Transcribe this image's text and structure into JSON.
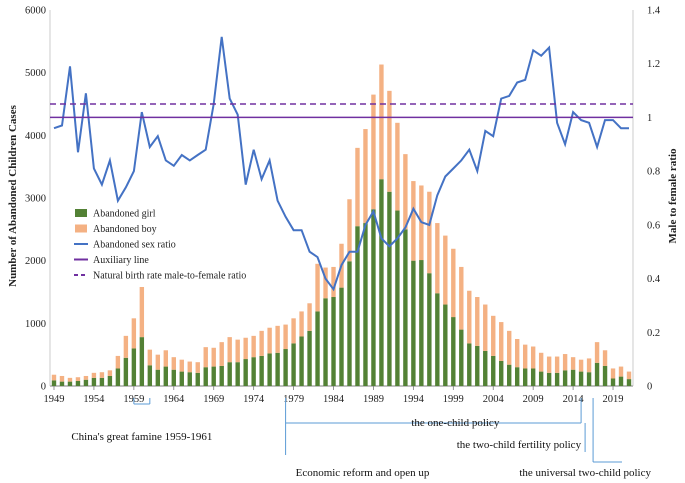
{
  "chart_data": {
    "type": "bar",
    "stacked": true,
    "ylabel": "Number of Abandoned Children Cases",
    "y2label": "Male to female ratio",
    "ylim": [
      0,
      6000
    ],
    "y2lim": [
      0,
      1.4
    ],
    "yticks": [
      "0",
      "1000",
      "2000",
      "3000",
      "4000",
      "5000",
      "6000"
    ],
    "y2ticks": [
      "0",
      "0.2",
      "0.4",
      "0.6",
      "0.8",
      "1",
      "1.2",
      "1.4"
    ],
    "xticks": [
      "1949",
      "1954",
      "1959",
      "1964",
      "1969",
      "1974",
      "1979",
      "1984",
      "1989",
      "1994",
      "1999",
      "2004",
      "2009",
      "2014",
      "2019"
    ],
    "x": [
      1949,
      1950,
      1951,
      1952,
      1953,
      1954,
      1955,
      1956,
      1957,
      1958,
      1959,
      1960,
      1961,
      1962,
      1963,
      1964,
      1965,
      1966,
      1967,
      1968,
      1969,
      1970,
      1971,
      1972,
      1973,
      1974,
      1975,
      1976,
      1977,
      1978,
      1979,
      1980,
      1981,
      1982,
      1983,
      1984,
      1985,
      1986,
      1987,
      1988,
      1989,
      1990,
      1991,
      1992,
      1993,
      1994,
      1995,
      1996,
      1997,
      1998,
      1999,
      2000,
      2001,
      2002,
      2003,
      2004,
      2005,
      2006,
      2007,
      2008,
      2009,
      2010,
      2011,
      2012,
      2013,
      2014,
      2015,
      2016,
      2017,
      2018,
      2019,
      2020,
      2021
    ],
    "series": [
      {
        "name": "Abandoned girl",
        "color": "#538135",
        "values": [
          90,
          70,
          70,
          80,
          100,
          130,
          130,
          160,
          280,
          450,
          600,
          780,
          330,
          260,
          310,
          260,
          230,
          220,
          210,
          300,
          310,
          320,
          380,
          380,
          430,
          460,
          480,
          520,
          530,
          590,
          680,
          790,
          880,
          1190,
          1400,
          1420,
          1570,
          1990,
          2550,
          2600,
          2820,
          3300,
          3100,
          2800,
          2500,
          2000,
          2010,
          1800,
          1480,
          1300,
          1100,
          900,
          680,
          640,
          560,
          480,
          400,
          340,
          300,
          280,
          280,
          230,
          210,
          210,
          250,
          260,
          230,
          220,
          370,
          320,
          120,
          150,
          110
        ]
      },
      {
        "name": "Abandoned boy",
        "color": "#F4B183",
        "values": [
          90,
          90,
          60,
          60,
          60,
          80,
          90,
          90,
          200,
          350,
          480,
          800,
          250,
          240,
          260,
          200,
          190,
          170,
          170,
          320,
          300,
          380,
          400,
          360,
          340,
          340,
          400,
          410,
          430,
          390,
          400,
          400,
          440,
          760,
          490,
          480,
          700,
          990,
          1250,
          1500,
          1830,
          1830,
          1610,
          1400,
          1200,
          1270,
          1190,
          1300,
          1120,
          1100,
          1090,
          1000,
          840,
          780,
          740,
          640,
          620,
          540,
          450,
          380,
          350,
          300,
          260,
          260,
          260,
          200,
          190,
          220,
          330,
          250,
          160,
          160,
          120
        ]
      },
      {
        "name": "Abandoned sex ratio",
        "color": "#4472C4",
        "axis": "right",
        "values": [
          0.96,
          0.97,
          1.19,
          0.87,
          1.09,
          0.81,
          0.75,
          0.84,
          0.69,
          0.74,
          0.8,
          1.02,
          0.89,
          0.93,
          0.84,
          0.82,
          0.86,
          0.84,
          0.86,
          0.88,
          1.05,
          1.3,
          1.07,
          1.01,
          0.75,
          0.88,
          0.77,
          0.84,
          0.69,
          0.63,
          0.58,
          0.58,
          0.5,
          0.48,
          0.4,
          0.36,
          0.45,
          0.5,
          0.5,
          0.6,
          0.65,
          0.55,
          0.52,
          0.55,
          0.59,
          0.66,
          0.61,
          0.6,
          0.71,
          0.78,
          0.81,
          0.84,
          0.88,
          0.8,
          0.95,
          0.93,
          1.07,
          1.08,
          1.13,
          1.14,
          1.25,
          1.23,
          1.26,
          0.98,
          0.9,
          1.02,
          0.99,
          0.98,
          0.89,
          0.99,
          0.99,
          0.96,
          0.96
        ]
      },
      {
        "name": "Auxiliary line",
        "color": "#7030A0",
        "axis": "right",
        "values_const": 1.0
      },
      {
        "name": "Natural birth rate male-to-female ratio",
        "color": "#7030A0",
        "axis": "right",
        "values_const": 1.05
      }
    ],
    "annotations": [
      {
        "label": "China's great famine 1959-1961",
        "from": 1959,
        "to": 1961
      },
      {
        "label": "the one-child policy",
        "from": 1980,
        "to": 2015
      },
      {
        "label": "the two-child fertility policy",
        "from": 2015,
        "to": 2015
      },
      {
        "label": "the universal two-child  policy",
        "from": 2016,
        "to": 2016
      },
      {
        "label": "Economic reform and open up",
        "from": 1978,
        "to": 1978
      }
    ]
  }
}
